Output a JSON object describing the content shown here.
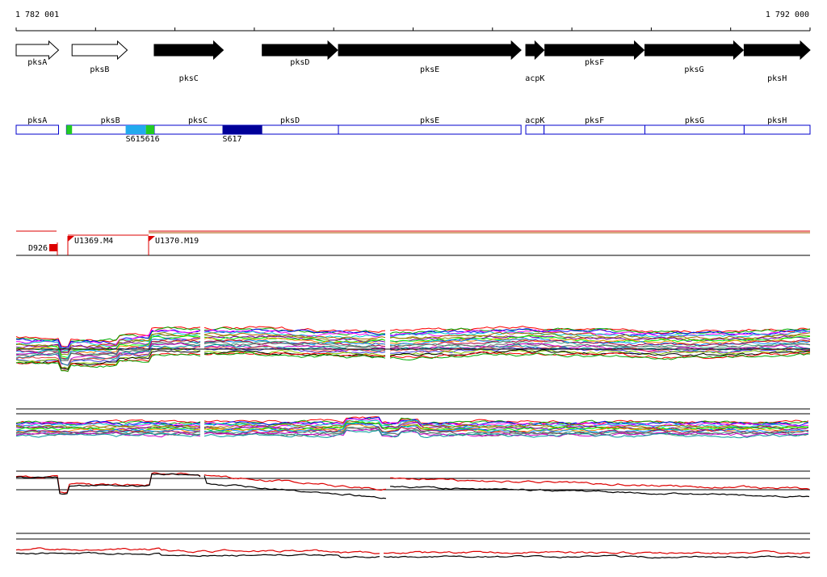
{
  "view": {
    "start_label": "1 782 001",
    "end_label": "1 792 000",
    "start_bp": 1782001,
    "end_bp": 1792000
  },
  "genes": [
    {
      "name": "pksA",
      "start": 1782001,
      "end": 1782535,
      "strand": "+",
      "filled": false,
      "label_row": 0
    },
    {
      "name": "pksB",
      "start": 1782705,
      "end": 1783400,
      "strand": "+",
      "filled": false,
      "label_row": 1
    },
    {
      "name": "pksC",
      "start": 1783740,
      "end": 1784610,
      "strand": "+",
      "filled": true,
      "label_row": 2
    },
    {
      "name": "pksD",
      "start": 1785100,
      "end": 1786050,
      "strand": "+",
      "filled": true,
      "label_row": 0
    },
    {
      "name": "pksE",
      "start": 1786060,
      "end": 1788360,
      "strand": "+",
      "filled": true,
      "label_row": 1
    },
    {
      "name": "acpK",
      "start": 1788420,
      "end": 1788650,
      "strand": "+",
      "filled": true,
      "label_row": 2
    },
    {
      "name": "pksF",
      "start": 1788660,
      "end": 1789910,
      "strand": "+",
      "filled": true,
      "label_row": 0
    },
    {
      "name": "pksG",
      "start": 1789920,
      "end": 1791160,
      "strand": "+",
      "filled": true,
      "label_row": 1
    },
    {
      "name": "pksH",
      "start": 1791170,
      "end": 1792000,
      "strand": "+",
      "filled": true,
      "label_row": 2
    }
  ],
  "features": [
    {
      "name": "pksA",
      "start": 1782001,
      "end": 1782535
    },
    {
      "name": "pksB",
      "start": 1782635,
      "end": 1783740
    },
    {
      "name": "pksC",
      "start": 1783740,
      "end": 1784840
    },
    {
      "name": "pksD",
      "start": 1784840,
      "end": 1786060
    },
    {
      "name": "pksE",
      "start": 1786060,
      "end": 1788360
    },
    {
      "name": "acpK",
      "start": 1788420,
      "end": 1788650
    },
    {
      "name": "pksF",
      "start": 1788650,
      "end": 1789920
    },
    {
      "name": "pksG",
      "start": 1789920,
      "end": 1791170
    },
    {
      "name": "pksH",
      "start": 1791170,
      "end": 1792000
    }
  ],
  "regions": [
    {
      "label": "",
      "start": 1782635,
      "end": 1782705,
      "color": "#22cc22"
    },
    {
      "label": "S615616",
      "start": 1783380,
      "end": 1783635,
      "color": "#22aaee"
    },
    {
      "label": "",
      "start": 1783635,
      "end": 1783740,
      "color": "#22cc22"
    },
    {
      "label": "S617",
      "start": 1784600,
      "end": 1785100,
      "color": "#000099"
    }
  ],
  "transcripts": [
    {
      "label": "D926",
      "start": 1782001,
      "end": 1782535
    },
    {
      "label": "U1369.M4",
      "start": 1782635,
      "end": 1783660
    },
    {
      "label": "U1370.M19",
      "start": 1783660,
      "end": 1792000
    }
  ],
  "colors": {
    "feature_outline": "#0000cc",
    "transcript": "#dd0000",
    "transcript_outline_dark": "#000000"
  }
}
